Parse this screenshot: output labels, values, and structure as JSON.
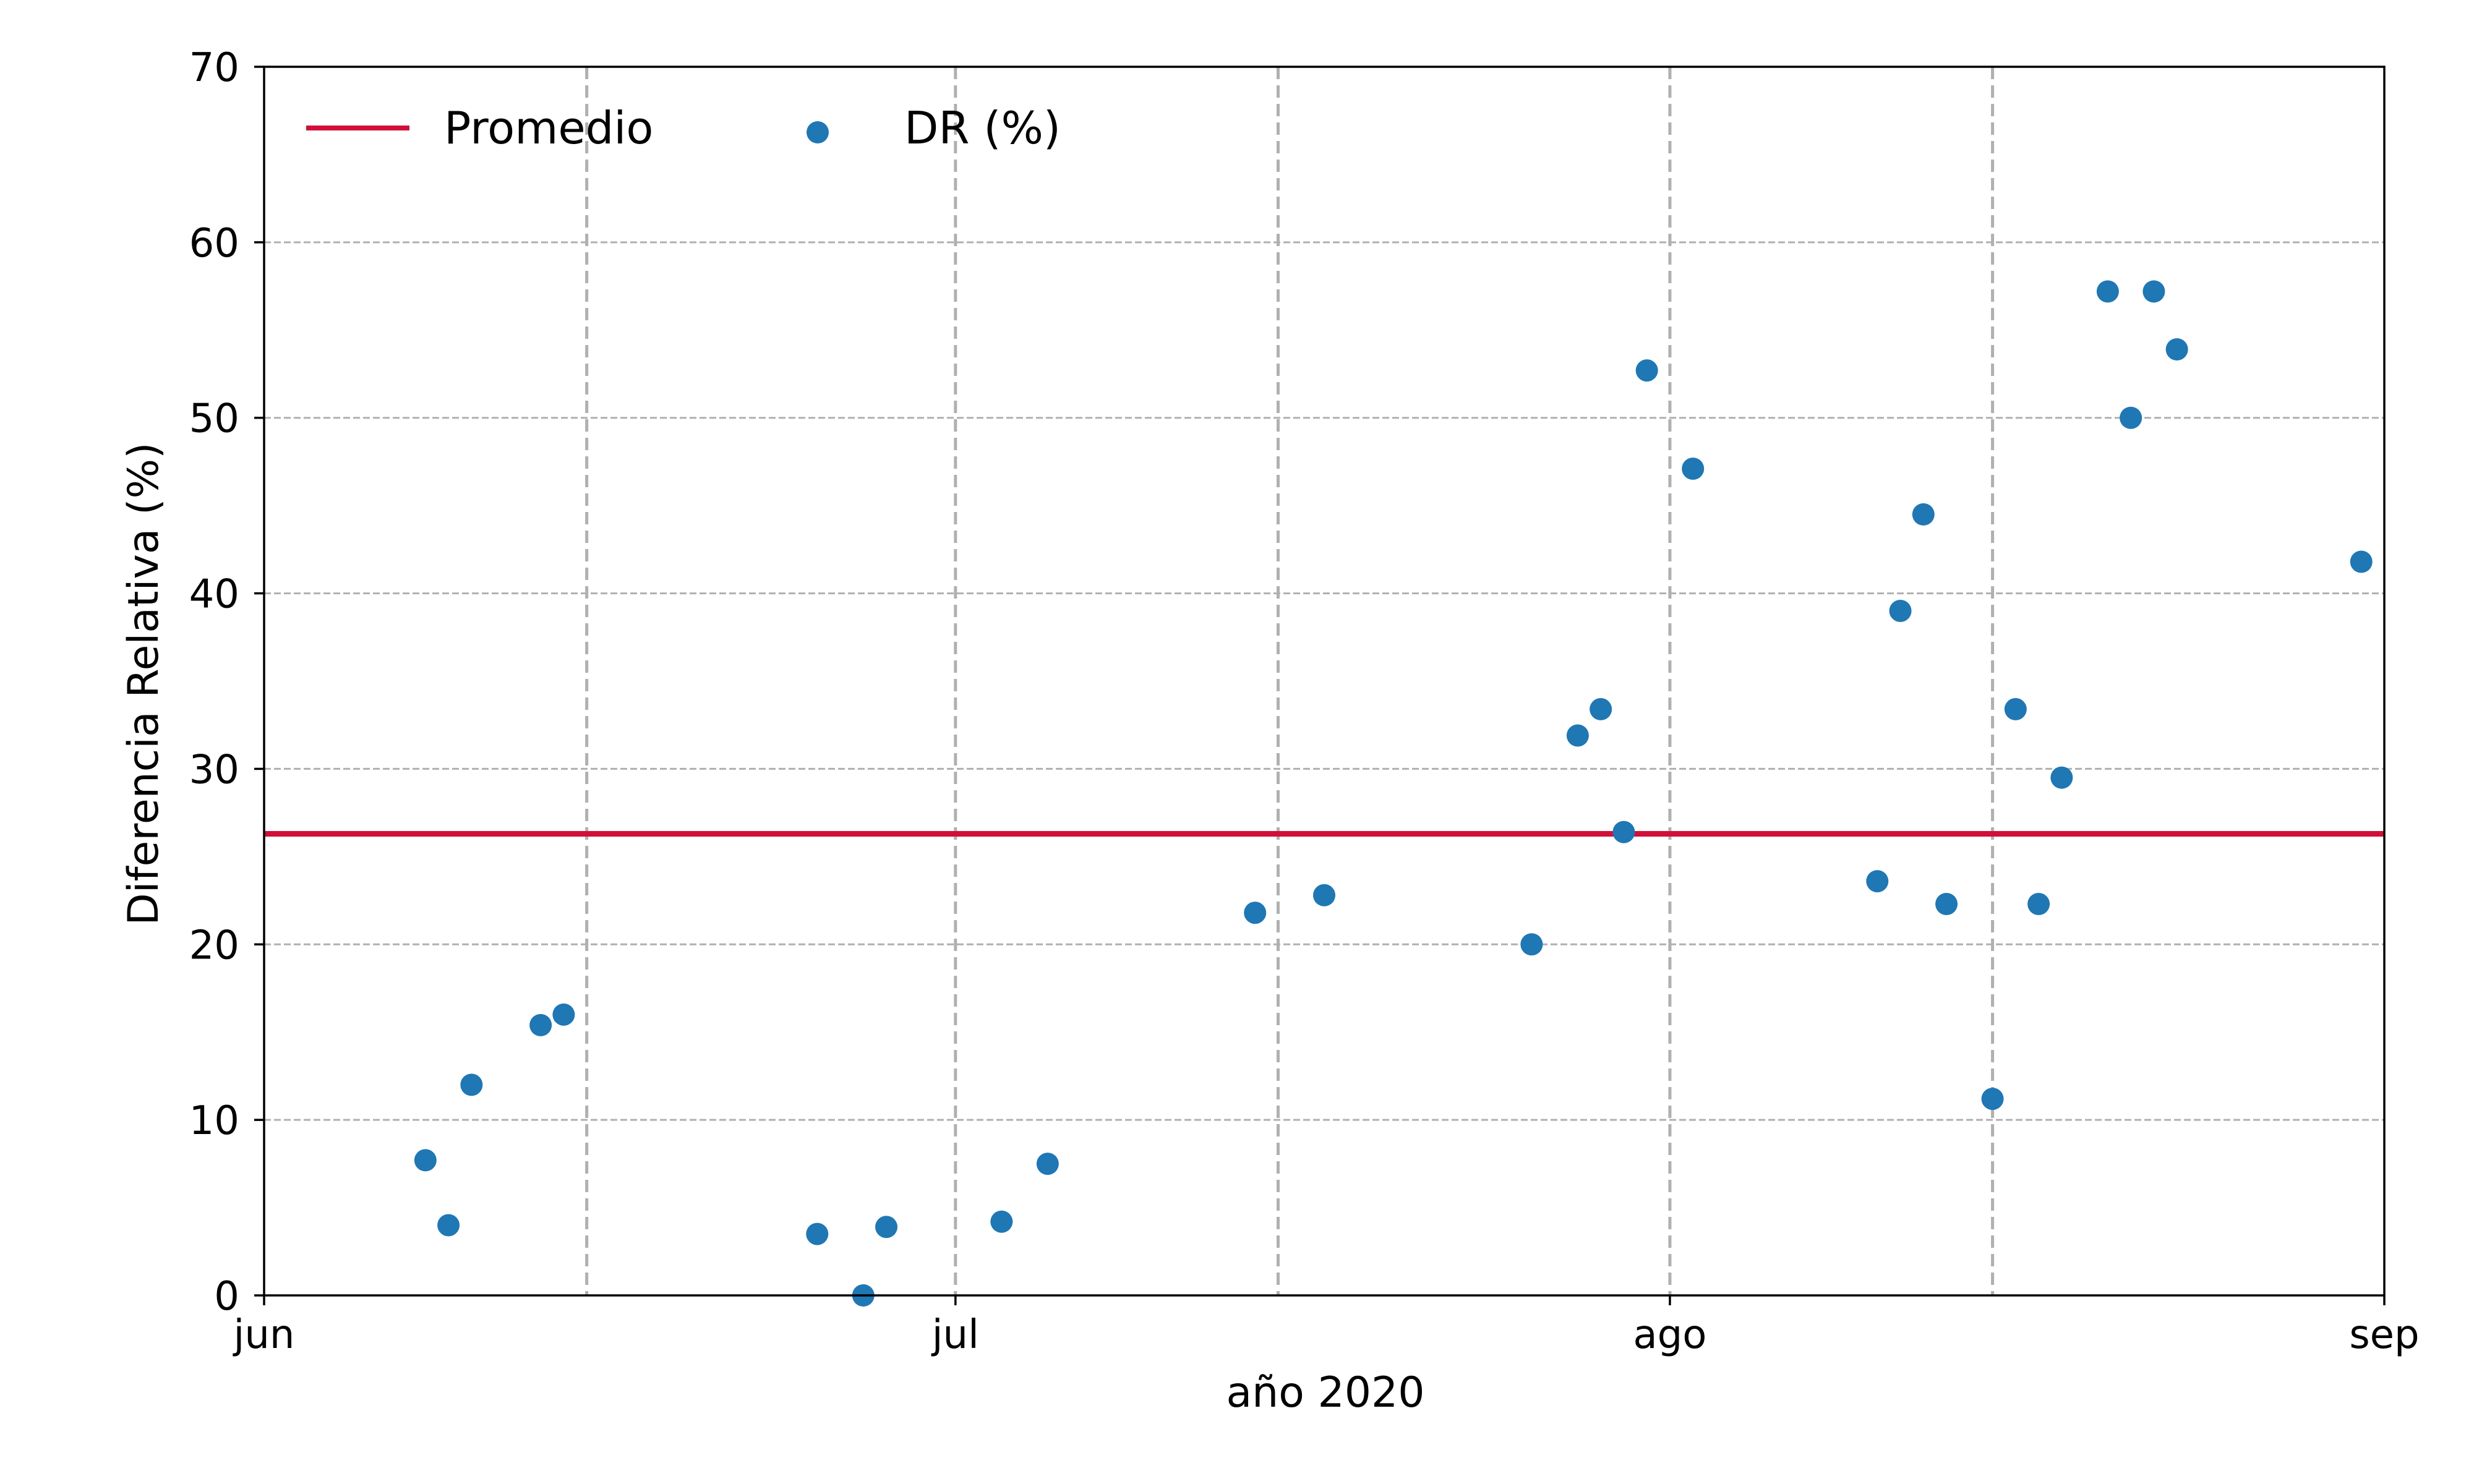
{
  "chart_data": {
    "type": "scatter",
    "xlabel": "año 2020",
    "ylabel": "Diferencia Relativa (%)",
    "xlim": [
      "2020-06-01",
      "2020-09-01"
    ],
    "ylim": [
      0,
      70
    ],
    "x_ticks": [
      {
        "date": "2020-06-01",
        "label": "jun"
      },
      {
        "date": "2020-07-01",
        "label": "jul"
      },
      {
        "date": "2020-08-01",
        "label": "ago"
      },
      {
        "date": "2020-09-01",
        "label": "sep"
      }
    ],
    "y_ticks": [
      0,
      10,
      20,
      30,
      40,
      50,
      60,
      70
    ],
    "vertical_dashed_lines": [
      "2020-06-15",
      "2020-07-01",
      "2020-07-15",
      "2020-08-01",
      "2020-08-15"
    ],
    "horizontal_grid": true,
    "legend": {
      "placement": "top-left",
      "entries": [
        {
          "label": "Promedio",
          "kind": "line",
          "color": "#d0103a"
        },
        {
          "label": "DR (%)",
          "kind": "marker",
          "color": "#1f77b4"
        }
      ]
    },
    "series": [
      {
        "name": "DR (%)",
        "color": "#1f77b4",
        "points": [
          {
            "x": "2020-06-08",
            "y": 7.7
          },
          {
            "x": "2020-06-09",
            "y": 4.0
          },
          {
            "x": "2020-06-10",
            "y": 12.0
          },
          {
            "x": "2020-06-13",
            "y": 15.4
          },
          {
            "x": "2020-06-14",
            "y": 16.0
          },
          {
            "x": "2020-06-25",
            "y": 3.5
          },
          {
            "x": "2020-06-27",
            "y": 0.0
          },
          {
            "x": "2020-06-28",
            "y": 3.9
          },
          {
            "x": "2020-07-03",
            "y": 4.2
          },
          {
            "x": "2020-07-05",
            "y": 7.5
          },
          {
            "x": "2020-07-14",
            "y": 21.8
          },
          {
            "x": "2020-07-17",
            "y": 22.8
          },
          {
            "x": "2020-07-26",
            "y": 20.0
          },
          {
            "x": "2020-07-28",
            "y": 31.9
          },
          {
            "x": "2020-07-29",
            "y": 33.4
          },
          {
            "x": "2020-07-30",
            "y": 26.4
          },
          {
            "x": "2020-07-31",
            "y": 52.7
          },
          {
            "x": "2020-08-02",
            "y": 47.1
          },
          {
            "x": "2020-08-10",
            "y": 23.6
          },
          {
            "x": "2020-08-11",
            "y": 39.0
          },
          {
            "x": "2020-08-12",
            "y": 44.5
          },
          {
            "x": "2020-08-13",
            "y": 22.3
          },
          {
            "x": "2020-08-15",
            "y": 11.2
          },
          {
            "x": "2020-08-16",
            "y": 33.4
          },
          {
            "x": "2020-08-17",
            "y": 22.3
          },
          {
            "x": "2020-08-18",
            "y": 29.5
          },
          {
            "x": "2020-08-20",
            "y": 57.2
          },
          {
            "x": "2020-08-21",
            "y": 50.0
          },
          {
            "x": "2020-08-22",
            "y": 57.2
          },
          {
            "x": "2020-08-23",
            "y": 53.9
          },
          {
            "x": "2020-08-31",
            "y": 41.8
          }
        ]
      },
      {
        "name": "Promedio",
        "type": "hline",
        "color": "#d0103a",
        "y": 26.3
      }
    ]
  }
}
